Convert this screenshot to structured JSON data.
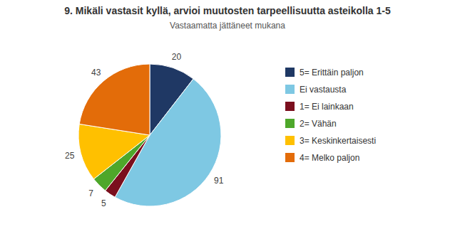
{
  "chart_data": {
    "type": "pie",
    "title": "9. Mikäli vastasit kyllä, arvioi muutosten tarpeellisuutta asteikolla 1-5",
    "subtitle": "Vastaamatta jättäneet mukana",
    "categories": [
      "5= Erittäin paljon",
      "Ei vastausta",
      "1= Ei lainkaan",
      "2= Vähän",
      "3= Keskinkertaisesti",
      "4= Melko paljon"
    ],
    "values": [
      20,
      91,
      5,
      7,
      25,
      43
    ],
    "colors": [
      "#1F3864",
      "#7EC8E3",
      "#7B0F1E",
      "#4EA72A",
      "#FFC000",
      "#E36C09"
    ],
    "data_labels": true,
    "legend": "right"
  }
}
